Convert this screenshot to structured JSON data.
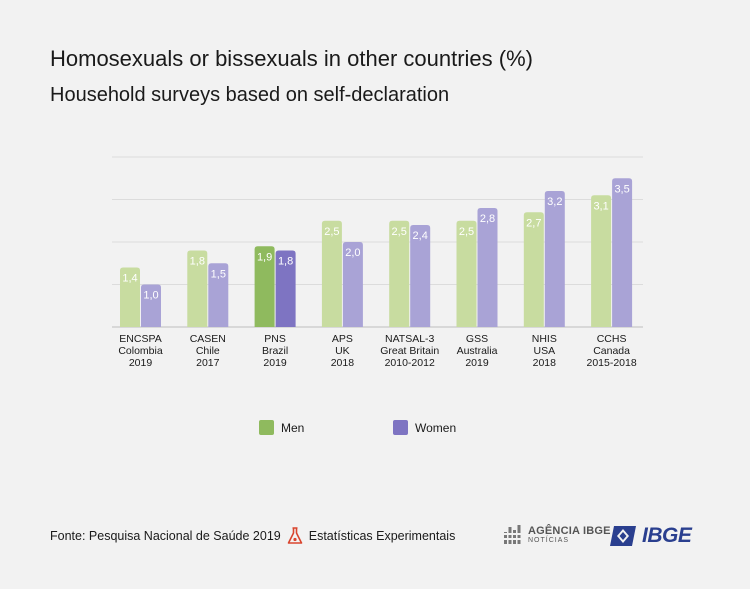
{
  "header": {
    "title": "Homosexuals or bissexuals in other countries (%)",
    "subtitle": "Household surveys based on self-declaration"
  },
  "chart_data": {
    "type": "bar",
    "categories": [
      [
        "ENCSPA",
        "Colombia",
        "2019"
      ],
      [
        "CASEN",
        "Chile",
        "2017"
      ],
      [
        "PNS",
        "Brazil",
        "2019"
      ],
      [
        "APS",
        "UK",
        "2018"
      ],
      [
        "NATSAL-3",
        "Great Britain",
        "2010-2012"
      ],
      [
        "GSS",
        "Australia",
        "2019"
      ],
      [
        "NHIS",
        "USA",
        "2018"
      ],
      [
        "CCHS",
        "Canada",
        "2015-2018"
      ]
    ],
    "series": [
      {
        "name": "Men",
        "values": [
          1.4,
          1.8,
          1.9,
          2.5,
          2.5,
          2.5,
          2.7,
          3.1
        ],
        "labels": [
          "1,4",
          "1,8",
          "1,9",
          "2,5",
          "2,5",
          "2,5",
          "2,7",
          "3,1"
        ]
      },
      {
        "name": "Women",
        "values": [
          1.0,
          1.5,
          1.8,
          2.0,
          2.4,
          2.8,
          3.2,
          3.5
        ],
        "labels": [
          "1,0",
          "1,5",
          "1,8",
          "2,0",
          "2,4",
          "2,8",
          "3,2",
          "3,5"
        ]
      }
    ],
    "highlight_index": 2,
    "ylim": [
      0,
      4
    ],
    "grid": true,
    "legend": "bottom-center",
    "colors": {
      "men": "#c8dca0",
      "women": "#a9a3d6",
      "men_highlight": "#8fba5e",
      "women_highlight": "#7e74c2",
      "grid": "#dcdcdc",
      "baseline": "#c8c8c8"
    }
  },
  "legend": {
    "men_label": "Men",
    "women_label": "Women"
  },
  "footer": {
    "source": "Fonte: Pesquisa Nacional de Saúde 2019",
    "experimental": "Estatísticas Experimentais",
    "flask_icon": "flask-icon"
  },
  "logos": {
    "agencia_main": "AGÊNCIA IBGE",
    "agencia_sub": "NOTÍCIAS",
    "ibge": "IBGE"
  }
}
